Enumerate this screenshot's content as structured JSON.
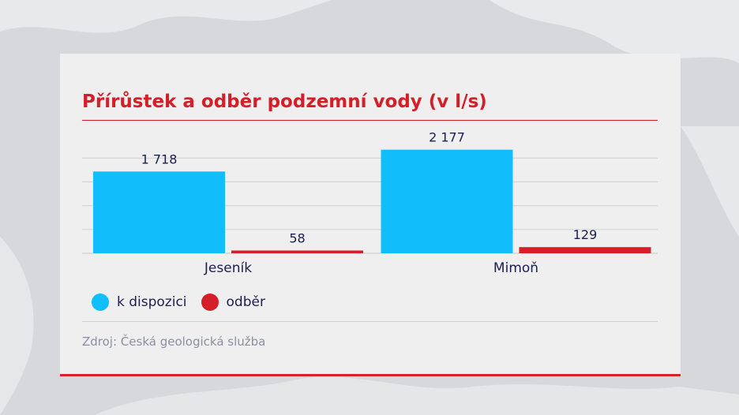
{
  "title": "Přírůstek a odběr podzemní vody (v l/s)",
  "source": "Zdroj: Česká geologická služba",
  "colors": {
    "available": "#12bdfb",
    "withdrawal": "#d41f28",
    "title": "#d41f28",
    "labels": "#1a1f4f"
  },
  "legend": [
    {
      "label": "k dispozici",
      "color": "#12bdfb"
    },
    {
      "label": "odběr",
      "color": "#d41f28"
    }
  ],
  "chart_data": {
    "type": "bar",
    "categories": [
      "Jeseník",
      "Mimoň"
    ],
    "series": [
      {
        "name": "k dispozici",
        "values": [
          1718,
          2177
        ],
        "labels": [
          "1 718",
          "2 177"
        ]
      },
      {
        "name": "odběr",
        "values": [
          58,
          129
        ],
        "labels": [
          "58",
          "129"
        ]
      }
    ],
    "ylim": [
      0,
      2500
    ],
    "grid": true,
    "legend_position": "bottom-left"
  }
}
